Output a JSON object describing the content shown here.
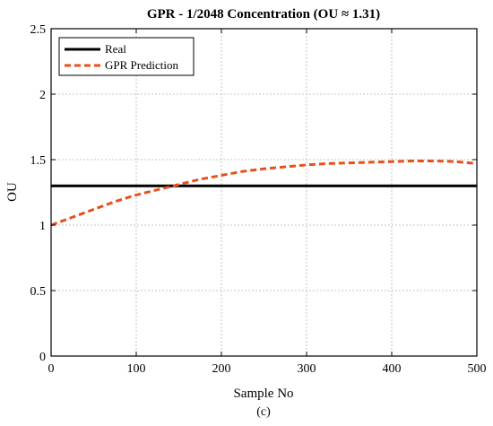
{
  "chart_data": {
    "type": "line",
    "title": "GPR - 1/2048 Concentration (OU ≈ 1.31)",
    "xlabel": "Sample No",
    "ylabel": "OU",
    "caption": "(c)",
    "xlim": [
      0,
      500
    ],
    "ylim": [
      0,
      2.5
    ],
    "xticks": [
      0,
      100,
      200,
      300,
      400,
      500
    ],
    "yticks": [
      0,
      0.5,
      1,
      1.5,
      2,
      2.5
    ],
    "xtick_labels": [
      "0",
      "100",
      "200",
      "300",
      "400",
      "500"
    ],
    "ytick_labels": [
      "0",
      "0.5",
      "1",
      "1.5",
      "2",
      "2.5"
    ],
    "grid": true,
    "legend_position": "top-left",
    "series": [
      {
        "name": "Real",
        "color": "#000000",
        "style": "solid",
        "x": [
          0,
          500
        ],
        "y": [
          1.3,
          1.3
        ]
      },
      {
        "name": "GPR Prediction",
        "color": "#E8501A",
        "style": "dashed",
        "x": [
          0,
          25,
          50,
          75,
          100,
          125,
          150,
          175,
          200,
          225,
          250,
          275,
          300,
          325,
          350,
          375,
          400,
          425,
          450,
          475,
          500
        ],
        "y": [
          1.0,
          1.06,
          1.12,
          1.18,
          1.23,
          1.27,
          1.31,
          1.35,
          1.38,
          1.41,
          1.43,
          1.445,
          1.46,
          1.47,
          1.475,
          1.48,
          1.485,
          1.49,
          1.49,
          1.485,
          1.47
        ]
      }
    ]
  }
}
